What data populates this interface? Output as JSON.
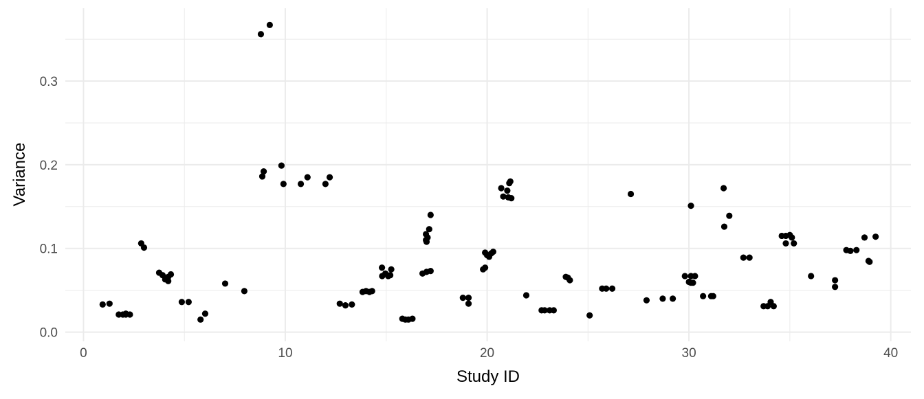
{
  "chart_data": {
    "type": "scatter",
    "title": "",
    "xlabel": "Study ID",
    "ylabel": "Variance",
    "xlim": [
      -0.9,
      41.0
    ],
    "ylim": [
      -0.011,
      0.387
    ],
    "x_ticks": [
      0,
      10,
      20,
      30,
      40
    ],
    "x_tick_labels": [
      "0",
      "10",
      "20",
      "30",
      "40"
    ],
    "y_ticks": [
      0.0,
      0.1,
      0.2,
      0.3
    ],
    "y_tick_labels": [
      "0.0",
      "0.1",
      "0.2",
      "0.3"
    ],
    "x_minor": [
      5,
      15,
      25,
      35
    ],
    "y_minor": [
      0.05,
      0.15,
      0.25,
      0.35
    ],
    "grid": true,
    "point_color": "#000000",
    "grid_color": "#ebebeb",
    "points": [
      [
        0.95,
        0.033
      ],
      [
        1.29,
        0.034
      ],
      [
        1.75,
        0.021
      ],
      [
        1.95,
        0.021
      ],
      [
        2.1,
        0.021
      ],
      [
        2.3,
        0.021
      ],
      [
        2.1,
        0.022
      ],
      [
        2.86,
        0.106
      ],
      [
        3.0,
        0.101
      ],
      [
        3.75,
        0.071
      ],
      [
        3.92,
        0.068
      ],
      [
        4.05,
        0.063
      ],
      [
        4.2,
        0.061
      ],
      [
        4.2,
        0.066
      ],
      [
        4.33,
        0.069
      ],
      [
        4.87,
        0.036
      ],
      [
        5.21,
        0.036
      ],
      [
        5.8,
        0.015
      ],
      [
        6.03,
        0.022
      ],
      [
        7.02,
        0.058
      ],
      [
        7.97,
        0.049
      ],
      [
        8.79,
        0.356
      ],
      [
        9.23,
        0.367
      ],
      [
        8.86,
        0.186
      ],
      [
        8.93,
        0.192
      ],
      [
        9.81,
        0.199
      ],
      [
        9.91,
        0.177
      ],
      [
        10.77,
        0.177
      ],
      [
        11.1,
        0.185
      ],
      [
        11.99,
        0.177
      ],
      [
        12.2,
        0.185
      ],
      [
        12.7,
        0.034
      ],
      [
        12.98,
        0.032
      ],
      [
        13.3,
        0.033
      ],
      [
        13.83,
        0.048
      ],
      [
        14.0,
        0.049
      ],
      [
        14.17,
        0.048
      ],
      [
        14.3,
        0.049
      ],
      [
        14.79,
        0.077
      ],
      [
        14.8,
        0.067
      ],
      [
        14.96,
        0.07
      ],
      [
        15.1,
        0.067
      ],
      [
        15.25,
        0.075
      ],
      [
        15.2,
        0.068
      ],
      [
        15.8,
        0.016
      ],
      [
        15.95,
        0.015
      ],
      [
        16.1,
        0.015
      ],
      [
        16.3,
        0.016
      ],
      [
        16.97,
        0.11
      ],
      [
        16.97,
        0.117
      ],
      [
        17.05,
        0.113
      ],
      [
        17.13,
        0.123
      ],
      [
        17.0,
        0.108
      ],
      [
        17.2,
        0.14
      ],
      [
        16.8,
        0.07
      ],
      [
        17.0,
        0.072
      ],
      [
        17.2,
        0.073
      ],
      [
        18.8,
        0.041
      ],
      [
        19.08,
        0.041
      ],
      [
        19.08,
        0.034
      ],
      [
        19.8,
        0.075
      ],
      [
        19.9,
        0.077
      ],
      [
        19.9,
        0.095
      ],
      [
        20.0,
        0.092
      ],
      [
        20.1,
        0.09
      ],
      [
        20.3,
        0.096
      ],
      [
        20.2,
        0.094
      ],
      [
        20.7,
        0.172
      ],
      [
        20.8,
        0.162
      ],
      [
        21.0,
        0.169
      ],
      [
        21.05,
        0.161
      ],
      [
        21.1,
        0.178
      ],
      [
        21.2,
        0.16
      ],
      [
        21.15,
        0.18
      ],
      [
        21.94,
        0.044
      ],
      [
        22.7,
        0.026
      ],
      [
        22.85,
        0.026
      ],
      [
        23.1,
        0.026
      ],
      [
        23.3,
        0.026
      ],
      [
        23.9,
        0.066
      ],
      [
        24.0,
        0.065
      ],
      [
        24.1,
        0.062
      ],
      [
        25.08,
        0.02
      ],
      [
        25.7,
        0.052
      ],
      [
        25.9,
        0.052
      ],
      [
        26.2,
        0.052
      ],
      [
        27.12,
        0.165
      ],
      [
        27.9,
        0.038
      ],
      [
        28.7,
        0.04
      ],
      [
        29.2,
        0.04
      ],
      [
        29.8,
        0.067
      ],
      [
        30.0,
        0.06
      ],
      [
        30.1,
        0.059
      ],
      [
        30.1,
        0.067
      ],
      [
        30.2,
        0.059
      ],
      [
        30.3,
        0.067
      ],
      [
        30.1,
        0.151
      ],
      [
        30.7,
        0.043
      ],
      [
        31.1,
        0.043
      ],
      [
        31.2,
        0.043
      ],
      [
        31.75,
        0.126
      ],
      [
        31.72,
        0.172
      ],
      [
        32.0,
        0.139
      ],
      [
        32.7,
        0.089
      ],
      [
        33.0,
        0.089
      ],
      [
        33.7,
        0.031
      ],
      [
        33.9,
        0.031
      ],
      [
        34.05,
        0.036
      ],
      [
        34.2,
        0.031
      ],
      [
        34.6,
        0.115
      ],
      [
        34.8,
        0.115
      ],
      [
        34.8,
        0.106
      ],
      [
        35.0,
        0.116
      ],
      [
        35.1,
        0.113
      ],
      [
        35.2,
        0.106
      ],
      [
        36.05,
        0.067
      ],
      [
        37.24,
        0.062
      ],
      [
        37.24,
        0.054
      ],
      [
        37.8,
        0.098
      ],
      [
        38.0,
        0.097
      ],
      [
        38.3,
        0.098
      ],
      [
        38.7,
        0.113
      ],
      [
        38.9,
        0.085
      ],
      [
        38.95,
        0.084
      ],
      [
        39.25,
        0.114
      ]
    ]
  }
}
